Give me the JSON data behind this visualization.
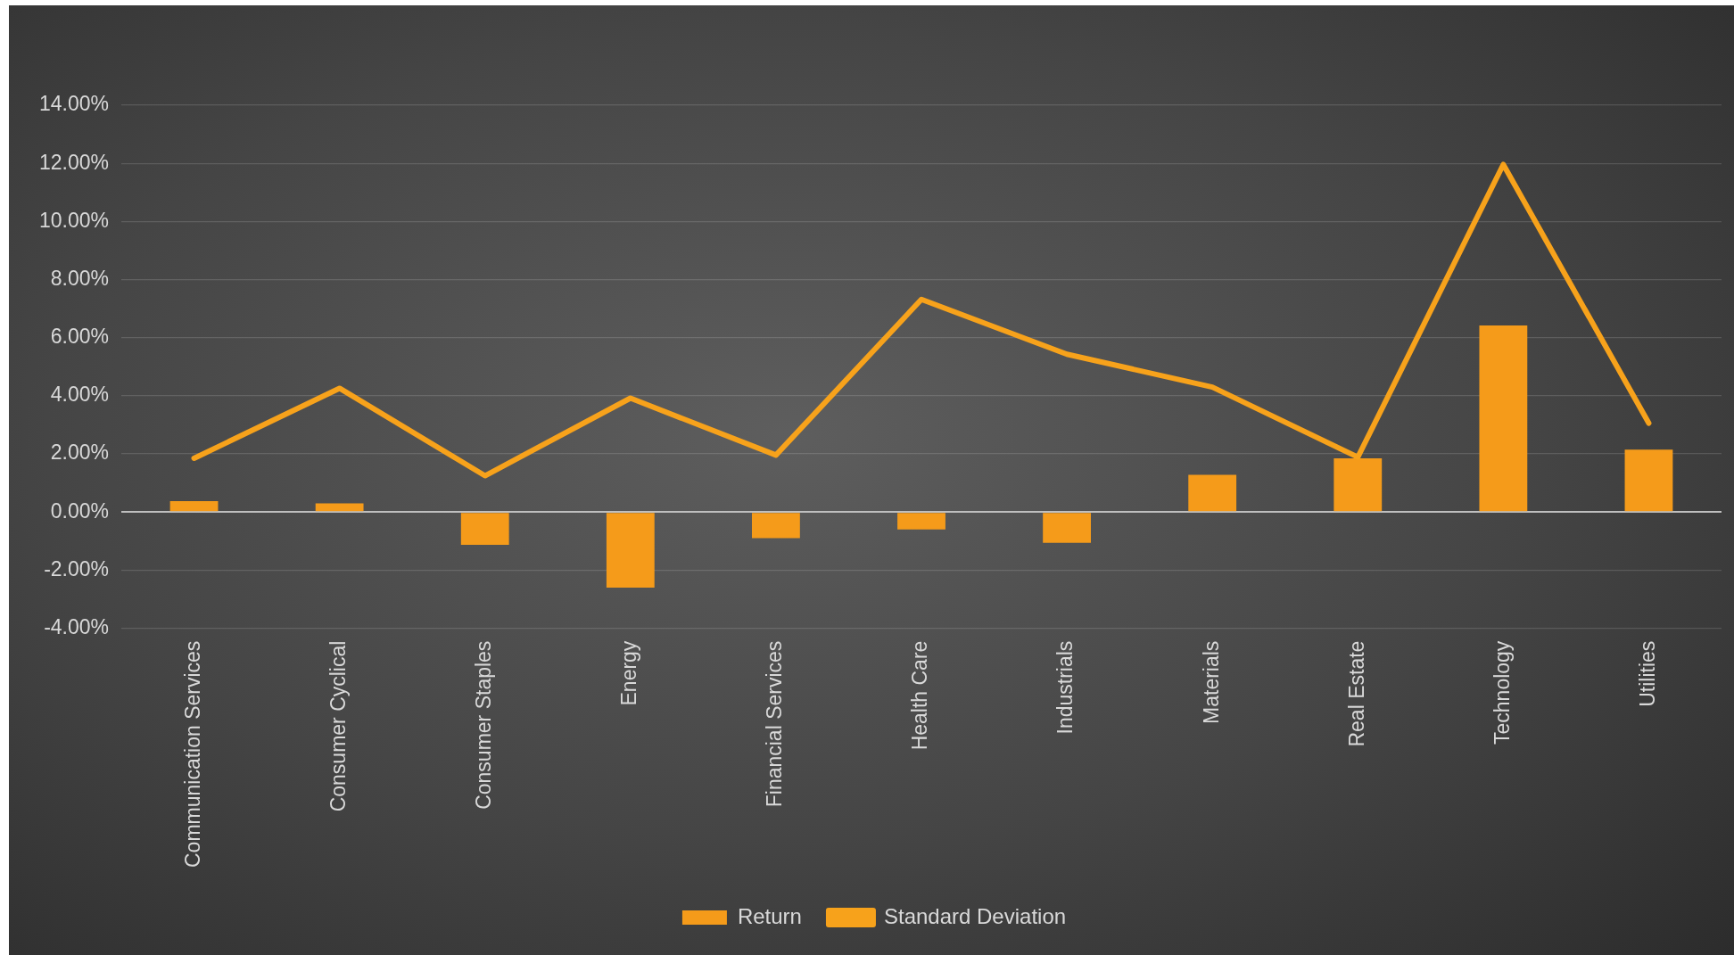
{
  "chart_data": {
    "type": "bar",
    "categories": [
      "Communication Services",
      "Consumer Cyclical",
      "Consumer Staples",
      "Energy",
      "Financial Services",
      "Health Care",
      "Industrials",
      "Materials",
      "Real Estate",
      "Technology",
      "Utilities"
    ],
    "series": [
      {
        "name": "Return",
        "color": "#f59b1a",
        "values": [
          0.38,
          0.3,
          -1.13,
          -2.6,
          -0.9,
          -0.6,
          -1.06,
          1.28,
          1.85,
          6.42,
          2.15
        ]
      },
      {
        "name": "Standard Deviation",
        "type": "line",
        "color": "#f7a21b",
        "values": [
          1.85,
          4.26,
          1.25,
          3.92,
          1.96,
          7.32,
          5.43,
          4.3,
          1.89,
          11.96,
          3.06
        ]
      }
    ],
    "ylim": [
      -4,
      14
    ],
    "yticks": [
      {
        "value": -4,
        "label": "-4.00%"
      },
      {
        "value": -2,
        "label": "-2.00%"
      },
      {
        "value": 0,
        "label": "0.00%"
      },
      {
        "value": 2,
        "label": "2.00%"
      },
      {
        "value": 4,
        "label": "4.00%"
      },
      {
        "value": 6,
        "label": "6.00%"
      },
      {
        "value": 8,
        "label": "8.00%"
      },
      {
        "value": 10,
        "label": "10.00%"
      },
      {
        "value": 12,
        "label": "12.00%"
      },
      {
        "value": 14,
        "label": "14.00%"
      }
    ],
    "grid": "y",
    "legend": "bottom",
    "marker": "none",
    "line_style": "solid"
  }
}
